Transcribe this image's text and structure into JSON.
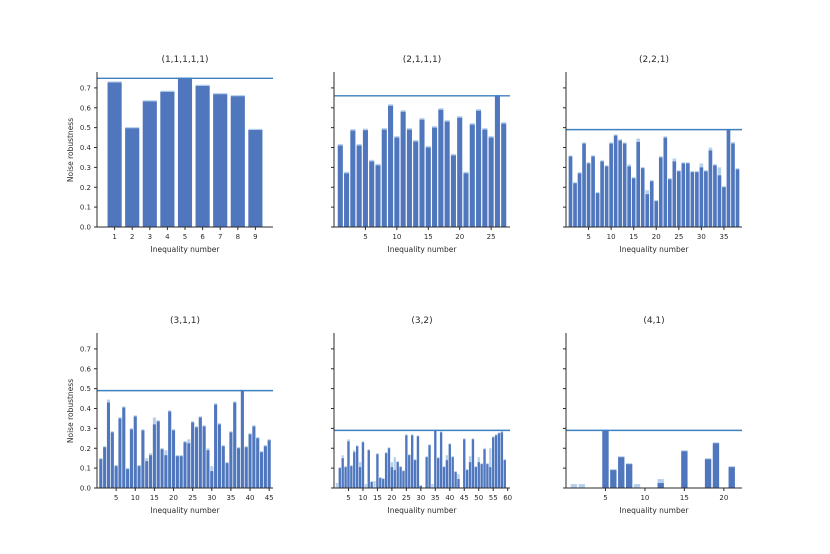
{
  "figure": {
    "background": "#ffffff"
  },
  "colors": {
    "bar_dark": "#5077bd",
    "bar_light": "#b7d0ec",
    "hline": "#3f80c1",
    "spine": "#2b2b2b",
    "text": "#2b2b2b"
  },
  "chart_data": [
    {
      "type": "bar",
      "title": "(1,1,1,1,1)",
      "xlabel": "Inequality number",
      "ylabel": "Noise robustness",
      "ylim": [
        0,
        0.78
      ],
      "xlim": [
        0,
        10
      ],
      "yticks": [
        0.0,
        0.1,
        0.2,
        0.3,
        0.4,
        0.5,
        0.6,
        0.7
      ],
      "ytick_labels": true,
      "xticks": [
        1,
        2,
        3,
        4,
        5,
        6,
        7,
        8,
        9
      ],
      "hline": 0.748,
      "values_dark": [
        0.727,
        0.497,
        0.632,
        0.68,
        0.748,
        0.71,
        0.668,
        0.658,
        0.488
      ],
      "values_light": [
        0.733,
        0.503,
        0.638,
        0.686,
        0.753,
        0.716,
        0.674,
        0.664,
        0.494
      ]
    },
    {
      "type": "bar",
      "title": "(2,1,1,1)",
      "xlabel": "Inequality number",
      "ylim": [
        0,
        0.78
      ],
      "xlim": [
        0,
        28
      ],
      "yticks": [
        0.0,
        0.1,
        0.2,
        0.3,
        0.4,
        0.5,
        0.6,
        0.7
      ],
      "ytick_labels": false,
      "xticks": [
        5,
        10,
        15,
        20,
        25
      ],
      "hline": 0.66,
      "values_dark": [
        0.41,
        0.27,
        0.485,
        0.41,
        0.487,
        0.33,
        0.31,
        0.49,
        0.61,
        0.45,
        0.58,
        0.49,
        0.43,
        0.54,
        0.4,
        0.5,
        0.59,
        0.53,
        0.36,
        0.55,
        0.27,
        0.515,
        0.585,
        0.49,
        0.45,
        0.66,
        0.52
      ],
      "values_light": [
        0.418,
        0.278,
        0.493,
        0.418,
        0.495,
        0.338,
        0.318,
        0.498,
        0.618,
        0.458,
        0.588,
        0.498,
        0.438,
        0.548,
        0.408,
        0.508,
        0.598,
        0.538,
        0.368,
        0.558,
        0.278,
        0.523,
        0.593,
        0.498,
        0.458,
        0.665,
        0.528
      ]
    },
    {
      "type": "bar",
      "title": "(2,2,1)",
      "xlabel": "Inequality number",
      "ylim": [
        0,
        0.78
      ],
      "xlim": [
        0,
        39
      ],
      "yticks": [
        0.0,
        0.1,
        0.2,
        0.3,
        0.4,
        0.5,
        0.6,
        0.7
      ],
      "ytick_labels": false,
      "xticks": [
        5,
        10,
        15,
        20,
        25,
        30,
        35
      ],
      "hline": 0.49,
      "values_dark": [
        0.355,
        0.22,
        0.27,
        0.42,
        0.32,
        0.355,
        0.17,
        0.33,
        0.305,
        0.42,
        0.46,
        0.435,
        0.42,
        0.305,
        0.245,
        0.428,
        0.296,
        0.165,
        0.23,
        0.13,
        0.35,
        0.45,
        0.24,
        0.33,
        0.28,
        0.32,
        0.32,
        0.276,
        0.276,
        0.3,
        0.28,
        0.385,
        0.31,
        0.26,
        0.2,
        0.49,
        0.42,
        0.29
      ],
      "values_light": [
        0.36,
        0.226,
        0.276,
        0.426,
        0.326,
        0.361,
        0.176,
        0.336,
        0.311,
        0.426,
        0.466,
        0.441,
        0.426,
        0.315,
        0.251,
        0.445,
        0.302,
        0.185,
        0.236,
        0.136,
        0.356,
        0.456,
        0.246,
        0.345,
        0.286,
        0.326,
        0.326,
        0.282,
        0.282,
        0.32,
        0.286,
        0.4,
        0.316,
        0.3,
        0.206,
        0.493,
        0.428,
        0.296
      ]
    },
    {
      "type": "bar",
      "title": "(3,1,1)",
      "xlabel": "Inequality number",
      "ylabel": "Noise robustness",
      "ylim": [
        0,
        0.78
      ],
      "xlim": [
        0,
        46
      ],
      "yticks": [
        0.0,
        0.1,
        0.2,
        0.3,
        0.4,
        0.5,
        0.6,
        0.7
      ],
      "ytick_labels": true,
      "xticks": [
        5,
        10,
        15,
        20,
        25,
        30,
        35,
        40,
        45
      ],
      "hline": 0.49,
      "values_dark": [
        0.145,
        0.205,
        0.43,
        0.28,
        0.11,
        0.35,
        0.405,
        0.095,
        0.295,
        0.36,
        0.11,
        0.29,
        0.135,
        0.165,
        0.32,
        0.335,
        0.195,
        0.165,
        0.385,
        0.29,
        0.16,
        0.16,
        0.23,
        0.225,
        0.33,
        0.305,
        0.355,
        0.31,
        0.19,
        0.085,
        0.42,
        0.32,
        0.21,
        0.125,
        0.28,
        0.43,
        0.2,
        0.49,
        0.205,
        0.27,
        0.31,
        0.25,
        0.18,
        0.21,
        0.24
      ],
      "values_light": [
        0.151,
        0.211,
        0.445,
        0.286,
        0.116,
        0.356,
        0.411,
        0.101,
        0.301,
        0.366,
        0.116,
        0.296,
        0.15,
        0.175,
        0.355,
        0.341,
        0.201,
        0.19,
        0.391,
        0.296,
        0.166,
        0.166,
        0.236,
        0.245,
        0.336,
        0.311,
        0.361,
        0.316,
        0.2,
        0.11,
        0.426,
        0.326,
        0.216,
        0.131,
        0.286,
        0.436,
        0.206,
        0.494,
        0.211,
        0.276,
        0.316,
        0.256,
        0.186,
        0.216,
        0.246
      ]
    },
    {
      "type": "bar",
      "title": "(3,2)",
      "xlabel": "Inequality number",
      "ylim": [
        0,
        0.78
      ],
      "xlim": [
        0,
        60.8
      ],
      "yticks": [
        0.0,
        0.1,
        0.2,
        0.3,
        0.4,
        0.5,
        0.6,
        0.7
      ],
      "ytick_labels": false,
      "xticks": [
        5,
        10,
        15,
        20,
        25,
        30,
        35,
        40,
        45,
        50,
        55,
        60
      ],
      "hline": 0.29,
      "values_dark": [
        0.0,
        0.1,
        0.15,
        0.105,
        0.235,
        0.11,
        0.18,
        0.21,
        0.105,
        0.23,
        0.0,
        0.19,
        0.03,
        0.0,
        0.17,
        0.05,
        0.045,
        0.175,
        0.2,
        0.105,
        0.09,
        0.13,
        0.105,
        0.085,
        0.265,
        0.165,
        0.265,
        0.14,
        0.26,
        0.01,
        0.0,
        0.155,
        0.215,
        0.0,
        0.29,
        0.15,
        0.28,
        0.105,
        0.14,
        0.22,
        0.155,
        0.08,
        0.045,
        0.0,
        0.245,
        0.09,
        0.13,
        0.245,
        0.105,
        0.13,
        0.12,
        0.195,
        0.12,
        0.105,
        0.255,
        0.265,
        0.275,
        0.28,
        0.14
      ],
      "values_light": [
        0.025,
        0.105,
        0.165,
        0.11,
        0.245,
        0.115,
        0.19,
        0.215,
        0.13,
        0.235,
        0.02,
        0.195,
        0.035,
        0.035,
        0.175,
        0.055,
        0.05,
        0.18,
        0.205,
        0.13,
        0.155,
        0.135,
        0.11,
        0.09,
        0.27,
        0.17,
        0.27,
        0.145,
        0.265,
        0.015,
        0.0,
        0.16,
        0.22,
        0.02,
        0.293,
        0.155,
        0.285,
        0.11,
        0.165,
        0.225,
        0.16,
        0.085,
        0.07,
        0.0,
        0.25,
        0.095,
        0.16,
        0.25,
        0.11,
        0.155,
        0.125,
        0.2,
        0.125,
        0.2,
        0.26,
        0.27,
        0.28,
        0.288,
        0.145
      ]
    },
    {
      "type": "bar",
      "title": "(4,1)",
      "xlabel": "Inequality number",
      "ylim": [
        0,
        0.78
      ],
      "xlim": [
        0,
        22.3
      ],
      "yticks": [
        0.0,
        0.1,
        0.2,
        0.3,
        0.4,
        0.5,
        0.6,
        0.7
      ],
      "ytick_labels": false,
      "xticks": [
        5,
        10,
        15,
        20
      ],
      "hline": 0.29,
      "values_dark": [
        0,
        0,
        0,
        0,
        0.29,
        0.09,
        0.155,
        0.12,
        0,
        0,
        0,
        0.025,
        0,
        0,
        0.185,
        0,
        0,
        0.145,
        0.225,
        0,
        0.105
      ],
      "values_light": [
        0.02,
        0.02,
        0,
        0,
        0.293,
        0.095,
        0.16,
        0.125,
        0.02,
        0,
        0,
        0.045,
        0,
        0,
        0.19,
        0,
        0,
        0.15,
        0.23,
        0,
        0.11
      ]
    }
  ]
}
